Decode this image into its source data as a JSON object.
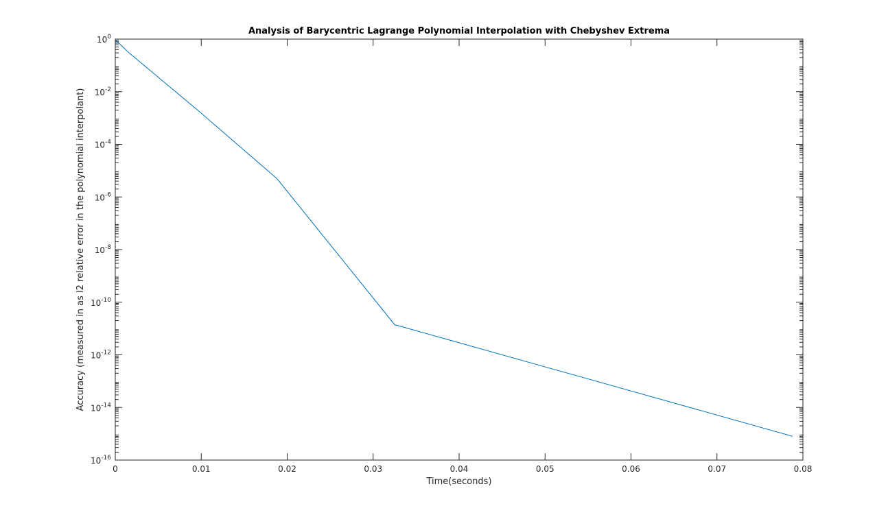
{
  "chart_data": {
    "type": "line",
    "title": "Analysis of Barycentric Lagrange Polynomial Interpolation with Chebyshev Extrema",
    "xlabel": "Time(seconds)",
    "ylabel": "Accuracy (measured in as l2 relative error in the polynomial interpolant)",
    "xlim": [
      0,
      0.08
    ],
    "ylim": [
      1e-16,
      1
    ],
    "yscale": "log",
    "grid": false,
    "x_ticks": [
      "0",
      "0.01",
      "0.02",
      "0.03",
      "0.04",
      "0.05",
      "0.06",
      "0.07",
      "0.08"
    ],
    "y_ticks": [
      {
        "base": "10",
        "exp": "-16"
      },
      {
        "base": "10",
        "exp": "-14"
      },
      {
        "base": "10",
        "exp": "-12"
      },
      {
        "base": "10",
        "exp": "-10"
      },
      {
        "base": "10",
        "exp": "-8"
      },
      {
        "base": "10",
        "exp": "-6"
      },
      {
        "base": "10",
        "exp": "-4"
      },
      {
        "base": "10",
        "exp": "-2"
      },
      {
        "base": "10",
        "exp": "0"
      }
    ],
    "series": [
      {
        "color": "#0072bd",
        "x": [
          0.0,
          0.0015,
          0.0095,
          0.0188,
          0.0325,
          0.0788
        ],
        "y": [
          0.95,
          0.32,
          0.0021,
          5e-06,
          1.4e-11,
          8e-16
        ]
      }
    ]
  }
}
